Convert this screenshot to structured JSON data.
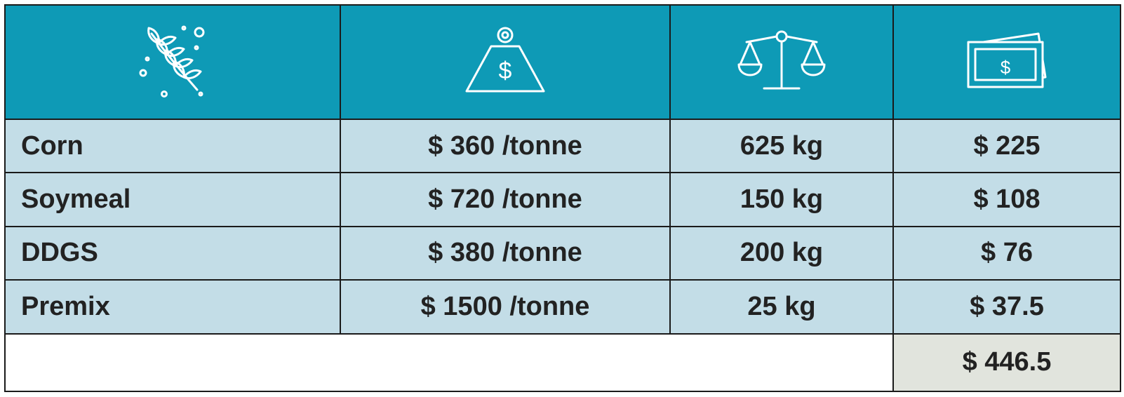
{
  "header": {
    "icons": [
      "wheat-icon",
      "weight-price-icon",
      "balance-scale-icon",
      "money-bills-icon"
    ]
  },
  "rows": [
    {
      "name": "Corn",
      "price": "$ 360 /tonne",
      "amount": "625 kg",
      "cost": "$ 225"
    },
    {
      "name": "Soymeal",
      "price": "$ 720 /tonne",
      "amount": "150 kg",
      "cost": "$ 108"
    },
    {
      "name": "DDGS",
      "price": "$ 380 /tonne",
      "amount": "200 kg",
      "cost": "$ 76"
    },
    {
      "name": "Premix",
      "price": "$ 1500 /tonne",
      "amount": "25 kg",
      "cost": "$ 37.5"
    }
  ],
  "total": "$ 446.5",
  "colors": {
    "header": "#0e9ab6",
    "row": "#c3dde7",
    "total": "#e1e4dd",
    "border": "#1a1a1a",
    "text": "#222222"
  }
}
